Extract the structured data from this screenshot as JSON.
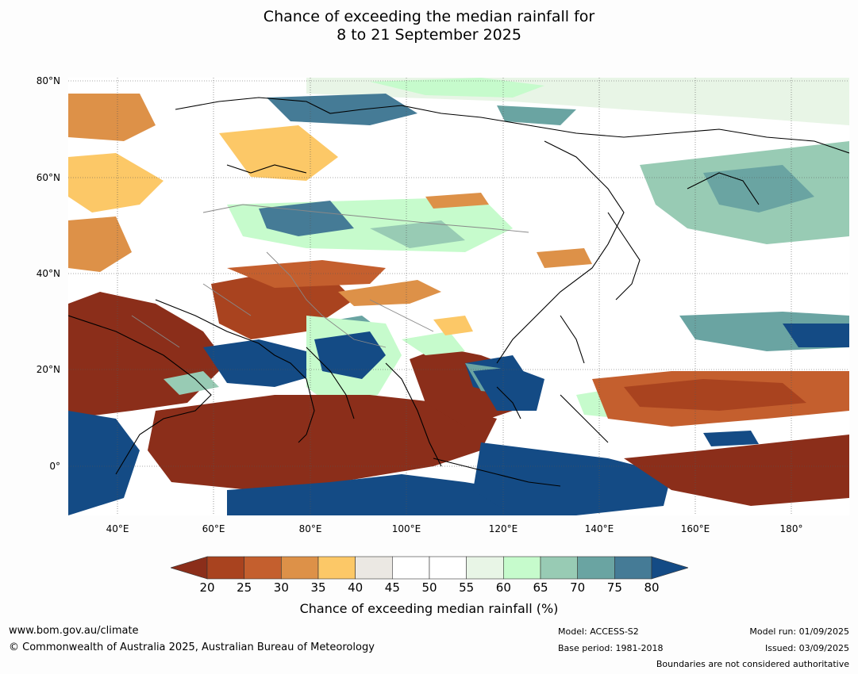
{
  "title_line1": "Chance of exceeding the median rainfall for",
  "title_line2": "8 to 21 September 2025",
  "map": {
    "lat_labels": [
      "80°N",
      "60°N",
      "40°N",
      "20°N",
      "0°"
    ],
    "lon_labels": [
      "40°E",
      "60°E",
      "80°E",
      "100°E",
      "120°E",
      "140°E",
      "160°E",
      "180°"
    ],
    "lon_range": [
      30,
      192
    ],
    "lat_range": [
      -10,
      81
    ]
  },
  "colorbar": {
    "ticks": [
      "20",
      "25",
      "30",
      "35",
      "40",
      "45",
      "50",
      "55",
      "60",
      "65",
      "70",
      "75",
      "80"
    ],
    "colors": [
      "#8b2e1a",
      "#a9431f",
      "#c45f2e",
      "#dd9148",
      "#fcc867",
      "#ebe8e3",
      "#ffffff",
      "#ffffff",
      "#e8f5e6",
      "#c6fbcc",
      "#98cbb4",
      "#6aa4a2",
      "#457b96",
      "#144b85"
    ],
    "label": "Chance of exceeding median rainfall (%)"
  },
  "footer": {
    "website": "www.bom.gov.au/climate",
    "copyright": "© Commonwealth of Australia 2025, Australian Bureau of Meteorology",
    "model": "Model: ACCESS-S2",
    "base_period": "Base period: 1981-2018",
    "model_run": "Model run: 01/09/2025",
    "issued": "Issued: 03/09/2025",
    "disclaimer": "Boundaries are not considered authoritative"
  }
}
